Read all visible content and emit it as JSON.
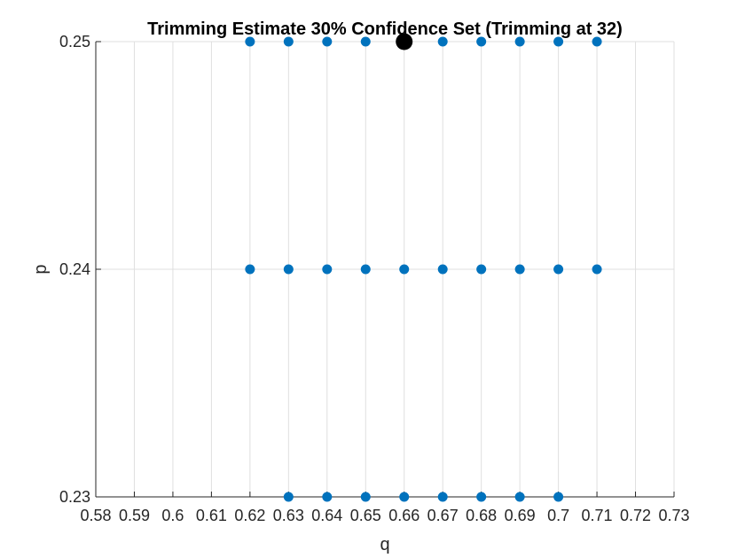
{
  "chart_data": {
    "type": "scatter",
    "title": "Trimming Estimate 30% Confidence Set (Trimming at 32)",
    "xlabel": "q",
    "ylabel": "p",
    "xlim": [
      0.58,
      0.73
    ],
    "ylim": [
      0.23,
      0.25
    ],
    "xticks": [
      0.58,
      0.59,
      0.6,
      0.61,
      0.62,
      0.63,
      0.64,
      0.65,
      0.66,
      0.67,
      0.68,
      0.69,
      0.7,
      0.71,
      0.72,
      0.73
    ],
    "xtick_labels": [
      "0.58",
      "0.59",
      "0.6",
      "0.61",
      "0.62",
      "0.63",
      "0.64",
      "0.65",
      "0.66",
      "0.67",
      "0.68",
      "0.69",
      "0.7",
      "0.71",
      "0.72",
      "0.73"
    ],
    "yticks": [
      0.23,
      0.24,
      0.25
    ],
    "ytick_labels": [
      "0.23",
      "0.24",
      "0.25"
    ],
    "grid": true,
    "series": [
      {
        "color": "#0072BD",
        "marker": "circle",
        "points": [
          [
            0.62,
            0.25
          ],
          [
            0.63,
            0.25
          ],
          [
            0.64,
            0.25
          ],
          [
            0.65,
            0.25
          ],
          [
            0.67,
            0.25
          ],
          [
            0.68,
            0.25
          ],
          [
            0.69,
            0.25
          ],
          [
            0.7,
            0.25
          ],
          [
            0.71,
            0.25
          ],
          [
            0.62,
            0.24
          ],
          [
            0.63,
            0.24
          ],
          [
            0.64,
            0.24
          ],
          [
            0.65,
            0.24
          ],
          [
            0.66,
            0.24
          ],
          [
            0.67,
            0.24
          ],
          [
            0.68,
            0.24
          ],
          [
            0.69,
            0.24
          ],
          [
            0.7,
            0.24
          ],
          [
            0.71,
            0.24
          ],
          [
            0.63,
            0.23
          ],
          [
            0.64,
            0.23
          ],
          [
            0.65,
            0.23
          ],
          [
            0.66,
            0.23
          ],
          [
            0.67,
            0.23
          ],
          [
            0.68,
            0.23
          ],
          [
            0.69,
            0.23
          ],
          [
            0.7,
            0.23
          ]
        ]
      },
      {
        "color": "#000000",
        "marker": "circle-large",
        "points": [
          [
            0.66,
            0.25
          ]
        ]
      }
    ]
  }
}
